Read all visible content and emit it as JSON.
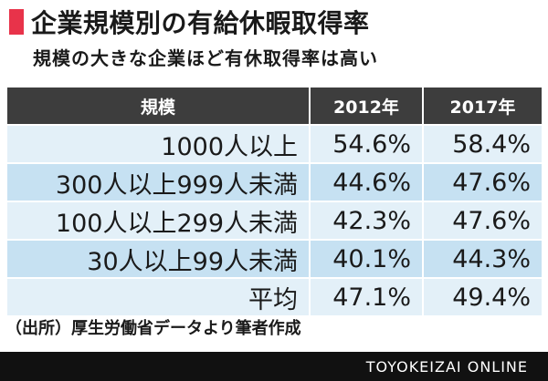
{
  "title": "企業規模別の有給休暇取得率",
  "subtitle": "規模の大きな企業ほど有休取得率は高い",
  "accent_color": "#e8334a",
  "chart_data": {
    "type": "table",
    "headers": [
      "規模",
      "2012年",
      "2017年"
    ],
    "rows": [
      [
        "1000人以上",
        "54.6%",
        "58.4%"
      ],
      [
        "300人以上999人未満",
        "44.6%",
        "47.6%"
      ],
      [
        "100人以上299人未満",
        "42.3%",
        "47.6%"
      ],
      [
        "30人以上99人未満",
        "40.1%",
        "44.3%"
      ],
      [
        "平均",
        "47.1%",
        "49.4%"
      ]
    ]
  },
  "source": "（出所）厚生労働省データより筆者作成",
  "brand": "TOYOKEIZAI ONLINE"
}
